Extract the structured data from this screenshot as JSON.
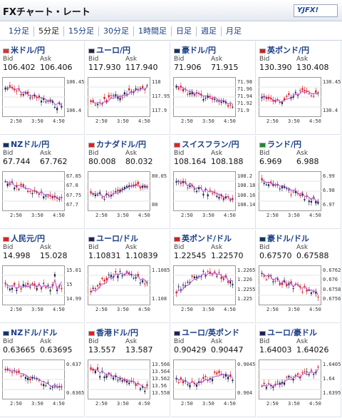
{
  "header": {
    "title": "FXチャート・レート",
    "logo": "YJFX!"
  },
  "tabs": [
    "1分足",
    "5分足",
    "15分足",
    "30分足",
    "1時間足",
    "日足",
    "週足",
    "月足"
  ],
  "active_tab": 1,
  "labels": {
    "bid": "Bid",
    "ask": "Ask"
  },
  "x_ticks": [
    "2:50",
    "3:50",
    "4:50"
  ],
  "pairs": [
    {
      "name": "米ドル/円",
      "bid": "106.402",
      "ask": "106.406",
      "yticks": [
        "106.45",
        "106.4"
      ],
      "trend": "down",
      "flag": "#d33"
    },
    {
      "name": "ユーロ/円",
      "bid": "117.930",
      "ask": "117.940",
      "yticks": [
        "118",
        "117.95",
        "117.9"
      ],
      "trend": "up",
      "flag": "#225"
    },
    {
      "name": "豪ドル/円",
      "bid": "71.906",
      "ask": "71.915",
      "yticks": [
        "71.98",
        "71.96",
        "71.94",
        "71.92",
        "71.9"
      ],
      "trend": "down",
      "flag": "#136"
    },
    {
      "name": "英ポンド/円",
      "bid": "130.390",
      "ask": "130.408",
      "yticks": [
        "130.45",
        "130.4"
      ],
      "trend": "flat",
      "flag": "#c22"
    },
    {
      "name": "NZドル/円",
      "bid": "67.744",
      "ask": "67.762",
      "yticks": [
        "67.85",
        "67.8",
        "67.75",
        "67.7"
      ],
      "trend": "down",
      "flag": "#136"
    },
    {
      "name": "カナダドル/円",
      "bid": "80.008",
      "ask": "80.032",
      "yticks": [
        "80.05",
        "80"
      ],
      "trend": "flat",
      "flag": "#d22"
    },
    {
      "name": "スイスフラン/円",
      "bid": "108.164",
      "ask": "108.188",
      "yticks": [
        "108.2",
        "108.18",
        "108.16",
        "108.14"
      ],
      "trend": "down",
      "flag": "#d22"
    },
    {
      "name": "ランド/円",
      "bid": "6.969",
      "ask": "6.988",
      "yticks": [
        "6.99",
        "6.98",
        "6.97"
      ],
      "trend": "down",
      "flag": "#283"
    },
    {
      "name": "人民元/円",
      "bid": "14.998",
      "ask": "15.028",
      "yticks": [
        "15.01",
        "15",
        "14.99"
      ],
      "trend": "spike",
      "flag": "#d22"
    },
    {
      "name": "ユーロ/ドル",
      "bid": "1.10831",
      "ask": "1.10839",
      "yticks": [
        "1.1085",
        "1.108"
      ],
      "trend": "hump",
      "flag": "#225"
    },
    {
      "name": "英ポンド/ドル",
      "bid": "1.22545",
      "ask": "1.22570",
      "yticks": [
        "1.2265",
        "1.226",
        "1.2255",
        "1.225"
      ],
      "trend": "hump",
      "flag": "#c22"
    },
    {
      "name": "豪ドル/ドル",
      "bid": "0.67570",
      "ask": "0.67588",
      "yticks": [
        "0.6762",
        "0.676",
        "0.6758",
        "0.6756"
      ],
      "trend": "down",
      "flag": "#136"
    },
    {
      "name": "NZドル/ドル",
      "bid": "0.63665",
      "ask": "0.63695",
      "yticks": [
        "0.637",
        "0.6365"
      ],
      "trend": "down",
      "flag": "#136"
    },
    {
      "name": "香港ドル/円",
      "bid": "13.557",
      "ask": "13.587",
      "yticks": [
        "13.566",
        "13.564",
        "13.562",
        "13.56",
        "13.558"
      ],
      "trend": "down",
      "flag": "#d22"
    },
    {
      "name": "ユーロ/英ポンド",
      "bid": "0.90429",
      "ask": "0.90447",
      "yticks": [
        "0.9045",
        "0.904"
      ],
      "trend": "flat",
      "flag": "#225"
    },
    {
      "name": "ユーロ/豪ドル",
      "bid": "1.64003",
      "ask": "1.64026",
      "yticks": [
        "1.6405",
        "1.64",
        "1.6395"
      ],
      "trend": "up",
      "flag": "#225"
    }
  ]
}
